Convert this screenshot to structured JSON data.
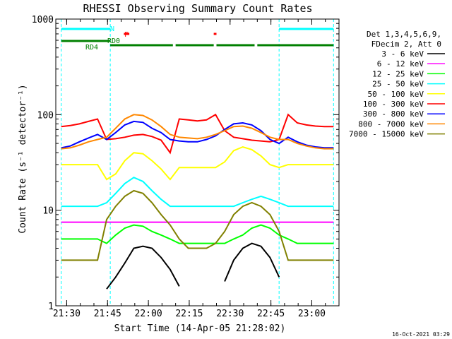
{
  "chart_data": {
    "type": "line",
    "title": "RHESSI Observing Summary Count Rates",
    "xlabel": "Start Time (14-Apr-05 21:28:02)",
    "ylabel": "Count Rate (s⁻¹ detector⁻¹)",
    "yscale": "log",
    "ylim": [
      1,
      1000
    ],
    "xlim": [
      "21:26",
      "23:10"
    ],
    "x_ticks": [
      "21:30",
      "21:45",
      "22:00",
      "22:15",
      "22:30",
      "22:45",
      "23:00"
    ],
    "y_ticks": [
      "1",
      "10",
      "100",
      "1000"
    ],
    "grid": false,
    "legend_position": "right",
    "legend_header": [
      "Det 1,3,4,5,6,9,",
      "FDecim 2, Att 0"
    ],
    "timestamp": "16-Oct-2021 03:29",
    "flags": [
      {
        "label": "N",
        "color": "#00ffff",
        "segments": [
          [
            "21:28",
            "21:46"
          ],
          [
            "22:48",
            "23:08"
          ]
        ]
      },
      {
        "label": "F",
        "color": "#ff0000",
        "segments": [
          [
            "21:51",
            "21:53"
          ],
          [
            "22:24",
            "22:25"
          ]
        ]
      },
      {
        "label": "RD0",
        "color": "#008000",
        "segments": [
          [
            "21:28",
            "21:46"
          ]
        ]
      },
      {
        "label": "RD4",
        "color": "#008000",
        "segments": [
          [
            "21:46",
            "22:09"
          ],
          [
            "22:10",
            "22:24"
          ],
          [
            "22:25",
            "22:39"
          ],
          [
            "22:40",
            "23:08"
          ]
        ]
      }
    ],
    "series": [
      {
        "name": "3 - 6 keV",
        "color": "#000000",
        "values": [
          null,
          null,
          null,
          null,
          null,
          1.5,
          2,
          2.8,
          4,
          4.2,
          4,
          3.2,
          2.4,
          1.6,
          null,
          null,
          null,
          null,
          1.8,
          3,
          4,
          4.5,
          4.2,
          3.2,
          2,
          null,
          null,
          null,
          null,
          null,
          null
        ]
      },
      {
        "name": "6 - 12 keV",
        "color": "#ff00ff",
        "values": [
          7.5,
          7.5,
          7.5,
          7.5,
          7.5,
          7.5,
          7.5,
          7.5,
          7.5,
          7.5,
          7.5,
          7.5,
          7.5,
          7.5,
          7.5,
          7.5,
          7.5,
          7.5,
          7.5,
          7.5,
          7.5,
          7.5,
          7.5,
          7.5,
          7.5,
          7.5,
          7.5,
          7.5,
          7.5,
          7.5,
          7.5
        ]
      },
      {
        "name": "12 - 25 keV",
        "color": "#00ff00",
        "values": [
          5,
          5,
          5,
          5,
          5,
          4.5,
          5.5,
          6.5,
          7,
          6.8,
          6,
          5.5,
          5,
          4.5,
          4.5,
          4.5,
          4.5,
          4.5,
          4.5,
          5,
          5.5,
          6.5,
          7,
          6.5,
          5.5,
          5,
          4.5,
          4.5,
          4.5,
          4.5,
          4.5
        ]
      },
      {
        "name": "25 - 50 keV",
        "color": "#00ffff",
        "values": [
          11,
          11,
          11,
          11,
          11,
          12,
          15,
          19,
          22,
          20,
          16,
          13,
          11,
          11,
          11,
          11,
          11,
          11,
          11,
          11,
          12,
          13,
          14,
          13,
          12,
          11,
          11,
          11,
          11,
          11,
          11
        ]
      },
      {
        "name": "50 - 100 keV",
        "color": "#ffff00",
        "values": [
          30,
          30,
          30,
          30,
          30,
          21,
          24,
          33,
          40,
          39,
          33,
          27,
          21,
          28,
          28,
          28,
          28,
          28,
          32,
          42,
          46,
          43,
          37,
          30,
          28,
          30,
          30,
          30,
          30,
          30,
          30
        ]
      },
      {
        "name": "100 - 300 keV",
        "color": "#ff0000",
        "values": [
          75,
          77,
          80,
          85,
          90,
          55,
          56,
          58,
          61,
          62,
          59,
          54,
          40,
          90,
          88,
          86,
          88,
          100,
          68,
          58,
          56,
          54,
          53,
          52,
          55,
          100,
          82,
          78,
          76,
          75,
          75
        ]
      },
      {
        "name": "300 - 800 keV",
        "color": "#0000ff",
        "values": [
          45,
          47,
          52,
          57,
          62,
          55,
          65,
          78,
          85,
          83,
          72,
          65,
          55,
          53,
          52,
          52,
          55,
          60,
          70,
          80,
          82,
          78,
          68,
          55,
          50,
          58,
          52,
          48,
          46,
          45,
          45
        ]
      },
      {
        "name": "800 - 7000 keV",
        "color": "#ff8800",
        "values": [
          44,
          45,
          48,
          52,
          55,
          58,
          72,
          90,
          100,
          98,
          88,
          75,
          62,
          58,
          57,
          56,
          58,
          62,
          68,
          75,
          76,
          72,
          65,
          58,
          55,
          55,
          50,
          47,
          45,
          44,
          44
        ]
      },
      {
        "name": "7000 - 15000 keV",
        "color": "#808000",
        "values": [
          3,
          3,
          3,
          3,
          3,
          8,
          11,
          14,
          16,
          15,
          12,
          9,
          7,
          5,
          4,
          4,
          4,
          4.5,
          6,
          9,
          11,
          12,
          11,
          9,
          6,
          3,
          3,
          3,
          3,
          3,
          3
        ]
      }
    ]
  }
}
